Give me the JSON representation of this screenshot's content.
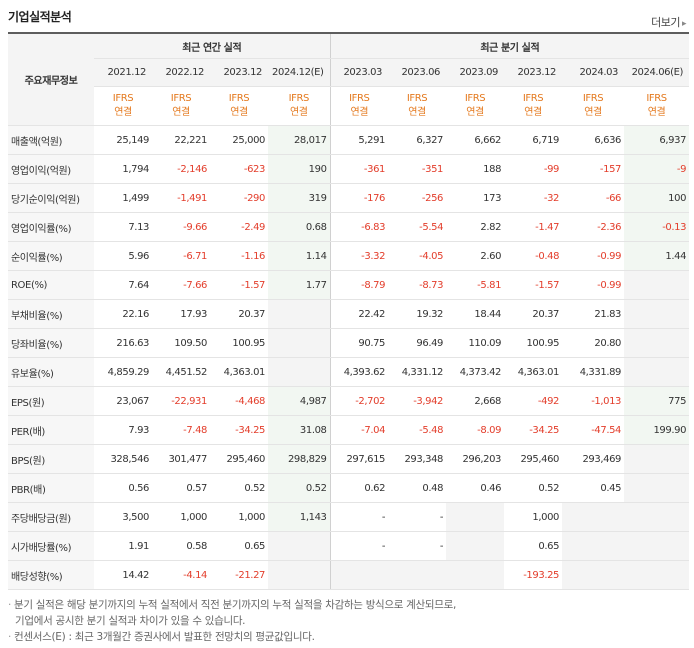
{
  "title": "기업실적분석",
  "more_label": "더보기",
  "more_arrow": "▸",
  "header": {
    "row_label": "주요재무정보",
    "annual_group": "최근 연간 실적",
    "quarter_group": "최근 분기 실적",
    "annual_periods": [
      "2021.12",
      "2022.12",
      "2023.12",
      "2024.12(E)"
    ],
    "quarter_periods": [
      "2023.03",
      "2023.06",
      "2023.09",
      "2023.12",
      "2024.03",
      "2024.06(E)"
    ],
    "basis_top": "IFRS",
    "basis_bottom": "연결"
  },
  "colors": {
    "negative": "#e33d2b",
    "basis": "#e4791e",
    "estimate_bg": "#f2f7f2"
  },
  "rows": [
    {
      "label": "매출액(억원)",
      "annual": [
        "25,149",
        "22,221",
        "25,000",
        "28,017"
      ],
      "quarter": [
        "5,291",
        "6,327",
        "6,662",
        "6,719",
        "6,636",
        "6,937"
      ]
    },
    {
      "label": "영업이익(억원)",
      "annual": [
        "1,794",
        "-2,146",
        "-623",
        "190"
      ],
      "quarter": [
        "-361",
        "-351",
        "188",
        "-99",
        "-157",
        "-9"
      ]
    },
    {
      "label": "당기순이익(억원)",
      "annual": [
        "1,499",
        "-1,491",
        "-290",
        "319"
      ],
      "quarter": [
        "-176",
        "-256",
        "173",
        "-32",
        "-66",
        "100"
      ]
    },
    {
      "label": "영업이익률(%)",
      "annual": [
        "7.13",
        "-9.66",
        "-2.49",
        "0.68"
      ],
      "quarter": [
        "-6.83",
        "-5.54",
        "2.82",
        "-1.47",
        "-2.36",
        "-0.13"
      ]
    },
    {
      "label": "순이익률(%)",
      "annual": [
        "5.96",
        "-6.71",
        "-1.16",
        "1.14"
      ],
      "quarter": [
        "-3.32",
        "-4.05",
        "2.60",
        "-0.48",
        "-0.99",
        "1.44"
      ]
    },
    {
      "label": "ROE(%)",
      "annual": [
        "7.64",
        "-7.66",
        "-1.57",
        "1.77"
      ],
      "quarter": [
        "-8.79",
        "-8.73",
        "-5.81",
        "-1.57",
        "-0.99",
        ""
      ]
    },
    {
      "label": "부채비율(%)",
      "annual": [
        "22.16",
        "17.93",
        "20.37",
        ""
      ],
      "quarter": [
        "22.42",
        "19.32",
        "18.44",
        "20.37",
        "21.83",
        ""
      ]
    },
    {
      "label": "당좌비율(%)",
      "annual": [
        "216.63",
        "109.50",
        "100.95",
        ""
      ],
      "quarter": [
        "90.75",
        "96.49",
        "110.09",
        "100.95",
        "20.80",
        ""
      ]
    },
    {
      "label": "유보율(%)",
      "annual": [
        "4,859.29",
        "4,451.52",
        "4,363.01",
        ""
      ],
      "quarter": [
        "4,393.62",
        "4,331.12",
        "4,373.42",
        "4,363.01",
        "4,331.89",
        ""
      ]
    },
    {
      "label": "EPS(원)",
      "annual": [
        "23,067",
        "-22,931",
        "-4,468",
        "4,987"
      ],
      "quarter": [
        "-2,702",
        "-3,942",
        "2,668",
        "-492",
        "-1,013",
        "775"
      ]
    },
    {
      "label": "PER(배)",
      "annual": [
        "7.93",
        "-7.48",
        "-34.25",
        "31.08"
      ],
      "quarter": [
        "-7.04",
        "-5.48",
        "-8.09",
        "-34.25",
        "-47.54",
        "199.90"
      ]
    },
    {
      "label": "BPS(원)",
      "annual": [
        "328,546",
        "301,477",
        "295,460",
        "298,829"
      ],
      "quarter": [
        "297,615",
        "293,348",
        "296,203",
        "295,460",
        "293,469",
        ""
      ]
    },
    {
      "label": "PBR(배)",
      "annual": [
        "0.56",
        "0.57",
        "0.52",
        "0.52"
      ],
      "quarter": [
        "0.62",
        "0.48",
        "0.46",
        "0.52",
        "0.45",
        ""
      ]
    },
    {
      "label": "주당배당금(원)",
      "annual": [
        "3,500",
        "1,000",
        "1,000",
        "1,143"
      ],
      "quarter": [
        "-",
        "-",
        "",
        "1,000",
        "",
        ""
      ]
    },
    {
      "label": "시가배당률(%)",
      "annual": [
        "1.91",
        "0.58",
        "0.65",
        ""
      ],
      "quarter": [
        "-",
        "-",
        "",
        "0.65",
        "",
        ""
      ]
    },
    {
      "label": "배당성향(%)",
      "annual": [
        "14.42",
        "-4.14",
        "-21.27",
        ""
      ],
      "quarter": [
        "",
        "",
        "",
        "-193.25",
        "",
        ""
      ]
    }
  ],
  "notes": [
    "분기 실적은 해당 분기까지의 누적 실적에서 직전 분기까지의 누적 실적을 차감하는 방식으로 계산되므로,",
    "기업에서 공시한 분기 실적과 차이가 있을 수 있습니다.",
    "컨센서스(E) : 최근 3개월간 증권사에서 발표한 전망치의 평균값입니다."
  ]
}
